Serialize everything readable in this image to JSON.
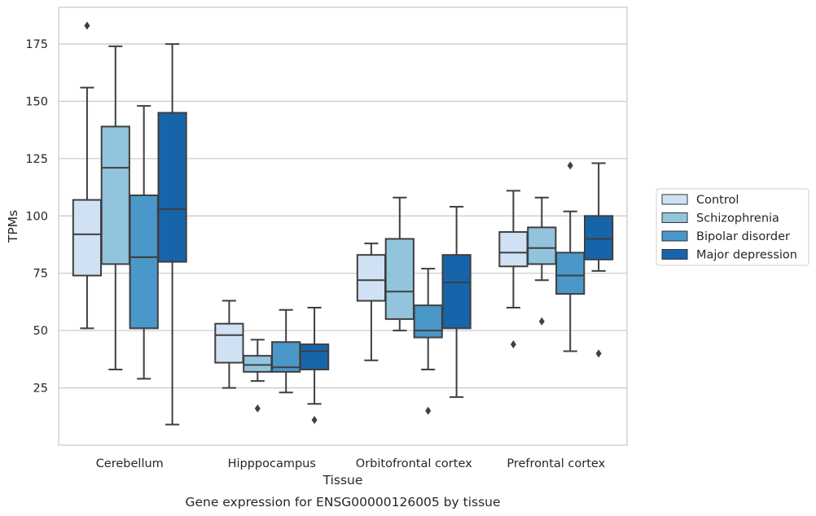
{
  "caption": "Gene expression for ENSG00000126005 by tissue",
  "chart_data": {
    "type": "box",
    "xlabel": "Tissue",
    "ylabel": "TPMs",
    "ylim": [
      0,
      191
    ],
    "yticks": [
      25,
      50,
      75,
      100,
      125,
      150,
      175
    ],
    "grid": "horizontal",
    "legend_position": "right",
    "categories": [
      "Cerebellum",
      "Hipppocampus",
      "Orbitofrontal cortex",
      "Prefrontal cortex"
    ],
    "series": [
      {
        "name": "Control",
        "color": "#cfe1f2",
        "boxes": [
          {
            "min": 51,
            "q1": 74,
            "median": 92,
            "q3": 107,
            "max": 156,
            "outliers": [
              183
            ]
          },
          {
            "min": 25,
            "q1": 36,
            "median": 48,
            "q3": 53,
            "max": 63,
            "outliers": []
          },
          {
            "min": 37,
            "q1": 63,
            "median": 72,
            "q3": 83,
            "max": 88,
            "outliers": []
          },
          {
            "min": 60,
            "q1": 78,
            "median": 84,
            "q3": 93,
            "max": 111,
            "outliers": [
              44
            ]
          }
        ]
      },
      {
        "name": "Schizophrenia",
        "color": "#93c4de",
        "boxes": [
          {
            "min": 33,
            "q1": 79,
            "median": 121,
            "q3": 139,
            "max": 174,
            "outliers": []
          },
          {
            "min": 28,
            "q1": 32,
            "median": 35,
            "q3": 39,
            "max": 46,
            "outliers": [
              16
            ]
          },
          {
            "min": 50,
            "q1": 55,
            "median": 67,
            "q3": 90,
            "max": 108,
            "outliers": []
          },
          {
            "min": 72,
            "q1": 79,
            "median": 86,
            "q3": 95,
            "max": 108,
            "outliers": [
              54
            ]
          }
        ]
      },
      {
        "name": "Bipolar disorder",
        "color": "#4a98c9",
        "boxes": [
          {
            "min": 29,
            "q1": 51,
            "median": 82,
            "q3": 109,
            "max": 148,
            "outliers": []
          },
          {
            "min": 23,
            "q1": 32,
            "median": 34,
            "q3": 45,
            "max": 59,
            "outliers": []
          },
          {
            "min": 33,
            "q1": 47,
            "median": 50,
            "q3": 61,
            "max": 77,
            "outliers": [
              15
            ]
          },
          {
            "min": 41,
            "q1": 66,
            "median": 74,
            "q3": 84,
            "max": 102,
            "outliers": [
              122
            ]
          }
        ]
      },
      {
        "name": "Major depression",
        "color": "#1764ab",
        "boxes": [
          {
            "min": 9,
            "q1": 80,
            "median": 103,
            "q3": 145,
            "max": 175,
            "outliers": []
          },
          {
            "min": 18,
            "q1": 33,
            "median": 41,
            "q3": 44,
            "max": 60,
            "outliers": [
              11
            ]
          },
          {
            "min": 21,
            "q1": 51,
            "median": 71,
            "q3": 83,
            "max": 104,
            "outliers": []
          },
          {
            "min": 76,
            "q1": 81,
            "median": 90,
            "q3": 100,
            "max": 123,
            "outliers": [
              40
            ]
          }
        ]
      }
    ]
  }
}
